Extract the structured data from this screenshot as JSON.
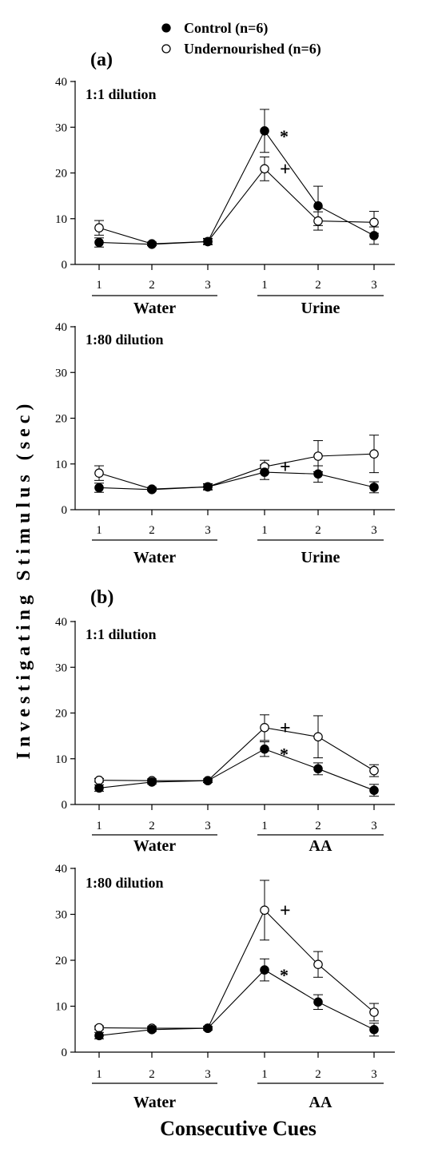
{
  "legend": {
    "entries": [
      {
        "label": "Control (n=6)",
        "marker": "filled-circle"
      },
      {
        "label": "Undernourished (n=6)",
        "marker": "open-circle"
      }
    ]
  },
  "y_label": "Investigating Stimulus (sec)",
  "x_label": "Consecutive Cues",
  "colors": {
    "control": "#000000",
    "undernourished": "#ffffff",
    "stroke": "#000000"
  },
  "chart_data": [
    {
      "type": "line",
      "panel": "(a)",
      "subtitle": "1:1 dilution",
      "tick_labels": [
        "1",
        "2",
        "3",
        "1",
        "2",
        "3"
      ],
      "groups": [
        {
          "label": "Water",
          "positions": [
            1,
            3
          ]
        },
        {
          "label": "Urine",
          "positions": [
            4,
            6
          ]
        }
      ],
      "ylim": [
        0,
        40
      ],
      "yticks": [
        "0",
        "10",
        "20",
        "30",
        "40"
      ],
      "series": [
        {
          "name": "Control (n=6)",
          "values": [
            4.8,
            4.4,
            5.0,
            29.2,
            12.8,
            6.3
          ],
          "errors": [
            1.0,
            0.3,
            0.6,
            4.7,
            4.3,
            1.9
          ]
        },
        {
          "name": "Undernourished (n=6)",
          "values": [
            8.0,
            4.5,
            5.0,
            20.9,
            9.5,
            9.2
          ],
          "errors": [
            1.6,
            0.4,
            0.7,
            2.6,
            2.0,
            2.4
          ]
        }
      ],
      "annotations": [
        {
          "text": "*",
          "series": 0,
          "point": 3
        },
        {
          "text": "+",
          "series": 1,
          "point": 3
        }
      ]
    },
    {
      "type": "line",
      "panel": "",
      "subtitle": "1:80 dilution",
      "tick_labels": [
        "1",
        "2",
        "3",
        "1",
        "2",
        "3"
      ],
      "groups": [
        {
          "label": "Water",
          "positions": [
            1,
            3
          ]
        },
        {
          "label": "Urine",
          "positions": [
            4,
            6
          ]
        }
      ],
      "ylim": [
        0,
        40
      ],
      "yticks": [
        "0",
        "10",
        "20",
        "30",
        "40"
      ],
      "series": [
        {
          "name": "Control (n=6)",
          "values": [
            4.8,
            4.4,
            5.0,
            8.2,
            7.8,
            4.9
          ],
          "errors": [
            1.0,
            0.3,
            0.6,
            1.6,
            1.8,
            1.2
          ]
        },
        {
          "name": "Undernourished (n=6)",
          "values": [
            8.0,
            4.5,
            5.0,
            9.4,
            11.7,
            12.2
          ],
          "errors": [
            1.6,
            0.4,
            0.7,
            1.4,
            3.4,
            4.1
          ]
        }
      ],
      "annotations": [
        {
          "text": "+",
          "series": 1,
          "point": 3
        }
      ]
    },
    {
      "type": "line",
      "panel": "(b)",
      "subtitle": "1:1 dilution",
      "tick_labels": [
        "1",
        "2",
        "3",
        "1",
        "2",
        "3"
      ],
      "groups": [
        {
          "label": "Water",
          "positions": [
            1,
            3
          ]
        },
        {
          "label": "AA",
          "positions": [
            4,
            6
          ]
        }
      ],
      "ylim": [
        0,
        40
      ],
      "yticks": [
        "0",
        "10",
        "20",
        "30",
        "40"
      ],
      "series": [
        {
          "name": "Control (n=6)",
          "values": [
            3.6,
            4.9,
            5.2,
            12.1,
            7.8,
            3.1
          ],
          "errors": [
            0.7,
            0.4,
            0.4,
            1.6,
            1.3,
            1.3
          ]
        },
        {
          "name": "Undernourished (n=6)",
          "values": [
            5.3,
            5.2,
            5.2,
            16.8,
            14.8,
            7.4
          ],
          "errors": [
            0.4,
            0.4,
            0.4,
            2.8,
            4.6,
            1.3
          ]
        }
      ],
      "annotations": [
        {
          "text": "*",
          "series": 0,
          "point": 3
        },
        {
          "text": "+",
          "series": 1,
          "point": 3
        }
      ]
    },
    {
      "type": "line",
      "panel": "",
      "subtitle": "1:80 dilution",
      "tick_labels": [
        "1",
        "2",
        "3",
        "1",
        "2",
        "3"
      ],
      "groups": [
        {
          "label": "Water",
          "positions": [
            1,
            3
          ]
        },
        {
          "label": "AA",
          "positions": [
            4,
            6
          ]
        }
      ],
      "ylim": [
        0,
        40
      ],
      "yticks": [
        "0",
        "10",
        "20",
        "30",
        "40"
      ],
      "series": [
        {
          "name": "Control (n=6)",
          "values": [
            3.6,
            4.9,
            5.2,
            17.9,
            10.9,
            4.9
          ],
          "errors": [
            0.7,
            0.4,
            0.4,
            2.4,
            1.6,
            1.4
          ]
        },
        {
          "name": "Undernourished (n=6)",
          "values": [
            5.3,
            5.2,
            5.2,
            30.9,
            19.1,
            8.7
          ],
          "errors": [
            0.4,
            0.4,
            0.4,
            6.5,
            2.8,
            1.9
          ]
        }
      ],
      "annotations": [
        {
          "text": "*",
          "series": 0,
          "point": 3
        },
        {
          "text": "+",
          "series": 1,
          "point": 3
        }
      ]
    }
  ]
}
